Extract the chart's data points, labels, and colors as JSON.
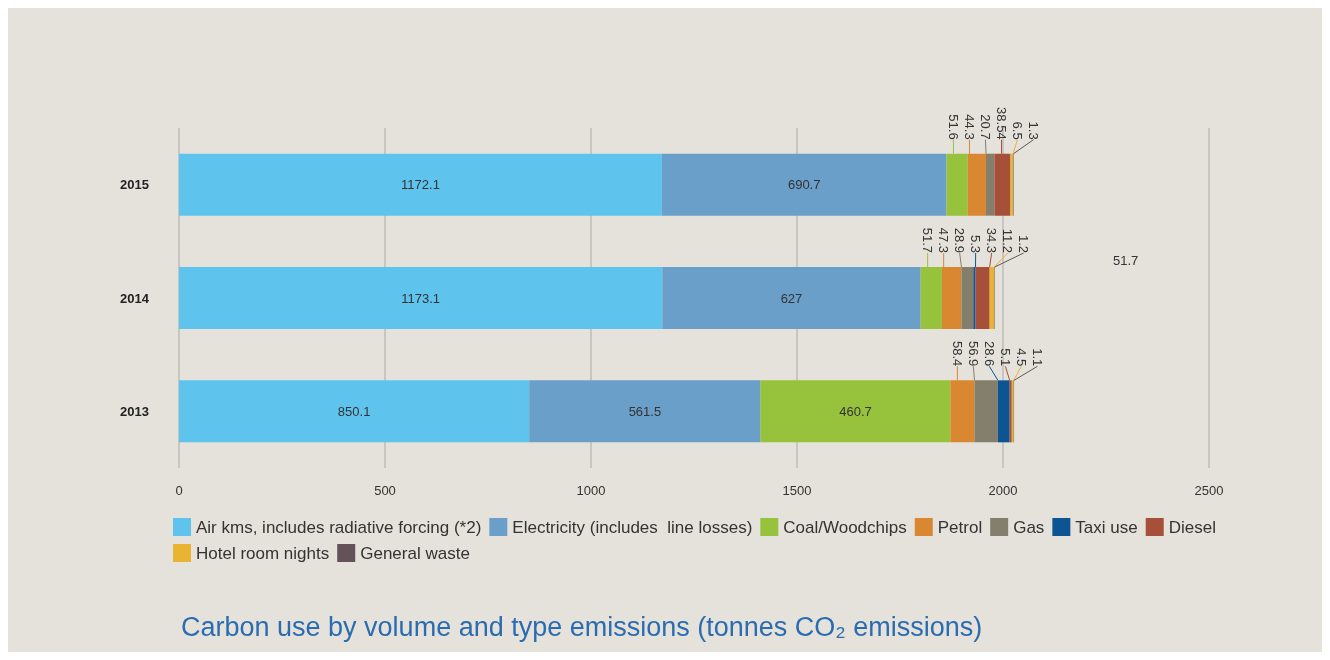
{
  "chart_data": {
    "type": "bar",
    "orientation": "horizontal",
    "stacked": true,
    "title": "Carbon use by volume and type emissions (tonnes CO₂ emissions)",
    "categories": [
      "2015",
      "2014",
      "2013"
    ],
    "series": [
      {
        "name": "Air kms, includes radiative forcing (*2)",
        "color": "#5ec4ee",
        "values": [
          1172.1,
          1173.1,
          850.1
        ]
      },
      {
        "name": "Electricity (includes  line losses)",
        "color": "#6a9fca",
        "values": [
          690.7,
          627,
          561.5
        ]
      },
      {
        "name": "Coal/Woodchips",
        "color": "#97c23c",
        "values": [
          51.6,
          51.7,
          460.7
        ]
      },
      {
        "name": "Petrol",
        "color": "#d98831",
        "values": [
          44.3,
          47.3,
          58.4
        ]
      },
      {
        "name": "Gas",
        "color": "#847f6c",
        "values": [
          20.7,
          28.9,
          56.9
        ]
      },
      {
        "name": "Taxi use",
        "color": "#0d5493",
        "values": [
          null,
          5.3,
          28.6
        ]
      },
      {
        "name": "Diesel",
        "color": "#a64f39",
        "values": [
          38.54,
          34.3,
          5.1
        ]
      },
      {
        "name": "Hotel room nights",
        "color": "#e9b334",
        "values": [
          6.5,
          11.2,
          4.5
        ]
      },
      {
        "name": "General waste",
        "color": "#635359",
        "values": [
          1.3,
          1.2,
          1.1
        ]
      }
    ],
    "xlim": [
      0,
      2500
    ],
    "xticks": [
      0,
      500,
      1000,
      1500,
      2000,
      2500
    ],
    "grid": "x",
    "legend": "bottom",
    "data_labels": true,
    "annotations": [
      "51.7"
    ]
  }
}
